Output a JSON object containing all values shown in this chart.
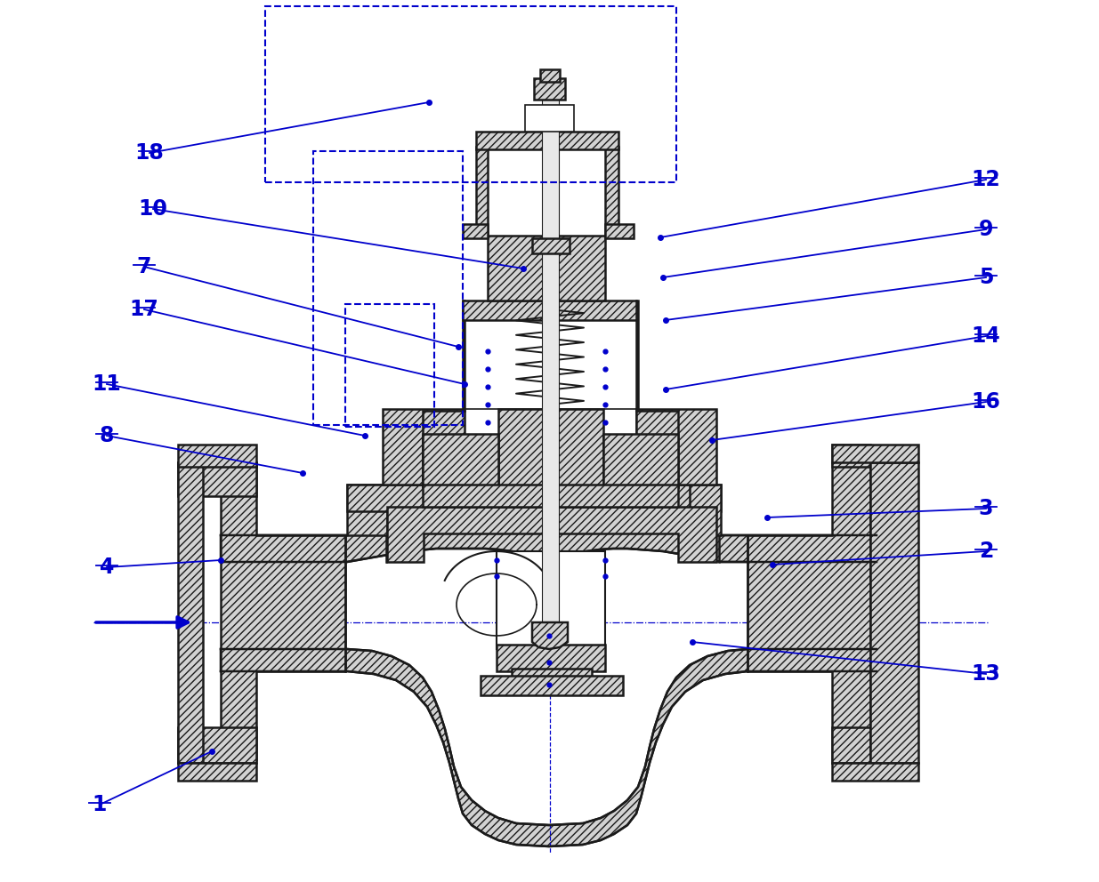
{
  "bg_color": "#ffffff",
  "draw_color": "#1a1a1a",
  "blue_color": "#0000CC",
  "label_color": "#0000CC",
  "label_fontsize": 17,
  "figsize": [
    12.35,
    9.92
  ],
  "dpi": 100,
  "labels": [
    [
      1,
      112,
      905,
      238,
      845
    ],
    [
      2,
      1108,
      620,
      868,
      635
    ],
    [
      3,
      1108,
      572,
      862,
      582
    ],
    [
      4,
      120,
      638,
      248,
      630
    ],
    [
      5,
      1108,
      312,
      748,
      360
    ],
    [
      7,
      162,
      300,
      515,
      390
    ],
    [
      8,
      120,
      490,
      340,
      532
    ],
    [
      9,
      1108,
      258,
      745,
      312
    ],
    [
      10,
      172,
      235,
      588,
      302
    ],
    [
      11,
      120,
      432,
      410,
      490
    ],
    [
      12,
      1108,
      202,
      742,
      267
    ],
    [
      13,
      1108,
      758,
      778,
      722
    ],
    [
      14,
      1108,
      378,
      748,
      438
    ],
    [
      16,
      1108,
      452,
      800,
      495
    ],
    [
      17,
      162,
      348,
      522,
      432
    ],
    [
      18,
      168,
      172,
      482,
      115
    ]
  ]
}
